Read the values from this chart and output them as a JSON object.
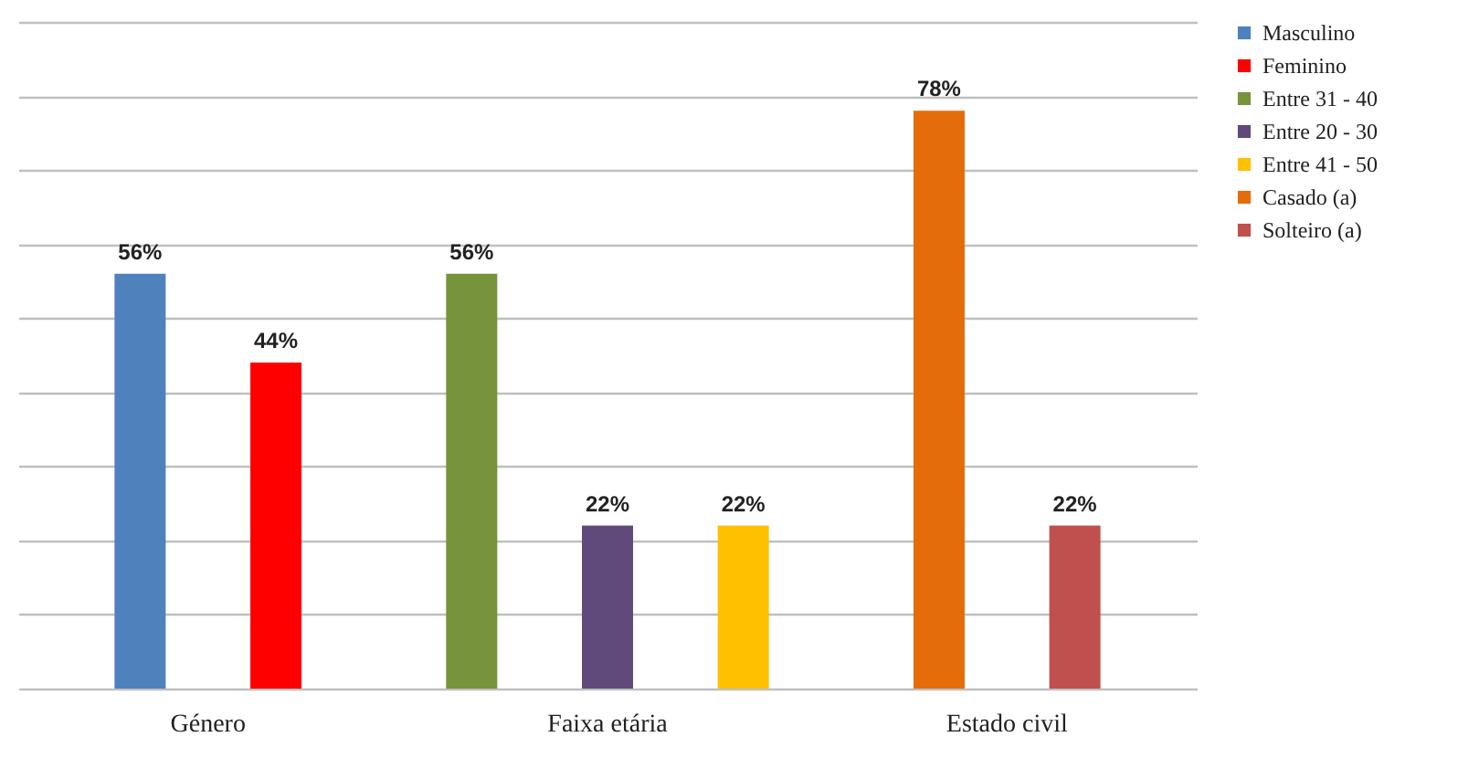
{
  "chart_data": {
    "type": "bar",
    "categories": [
      "Género",
      "Faixa etária",
      "Estado civil"
    ],
    "series": [
      {
        "name": "Masculino",
        "color": "#4f81bd",
        "values": [
          56,
          null,
          null
        ],
        "value_labels": [
          "56%",
          null,
          null
        ]
      },
      {
        "name": "Feminino",
        "color": "#ff0000",
        "values": [
          44,
          null,
          null
        ],
        "value_labels": [
          "44%",
          null,
          null
        ]
      },
      {
        "name": "Entre 31 - 40",
        "color": "#77933c",
        "values": [
          null,
          56,
          null
        ],
        "value_labels": [
          null,
          "56%",
          null
        ]
      },
      {
        "name": "Entre 20 - 30",
        "color": "#604a7b",
        "values": [
          null,
          22,
          null
        ],
        "value_labels": [
          null,
          "22%",
          null
        ]
      },
      {
        "name": "Entre 41 - 50",
        "color": "#ffc000",
        "values": [
          null,
          22,
          null
        ],
        "value_labels": [
          null,
          "22%",
          null
        ]
      },
      {
        "name": "Casado (a)",
        "color": "#e46c0a",
        "values": [
          null,
          null,
          78
        ],
        "value_labels": [
          null,
          null,
          "78%"
        ]
      },
      {
        "name": "Solteiro (a)",
        "color": "#c0504d",
        "values": [
          null,
          null,
          22
        ],
        "value_labels": [
          null,
          null,
          "22%"
        ]
      }
    ],
    "ylim": [
      0,
      90
    ],
    "yticks": [
      {
        "value": 0,
        "label": null
      },
      {
        "value": 10,
        "label": null
      },
      {
        "value": 20,
        "label": null
      },
      {
        "value": 30,
        "label": null
      },
      {
        "value": 40,
        "label": null
      },
      {
        "value": 50,
        "label": null
      },
      {
        "value": 60,
        "label": null
      },
      {
        "value": 70,
        "label": null
      },
      {
        "value": 80,
        "label": null
      },
      {
        "value": 90,
        "label": null
      }
    ],
    "grid": "y",
    "legend": "right",
    "tick_labels": "x"
  }
}
